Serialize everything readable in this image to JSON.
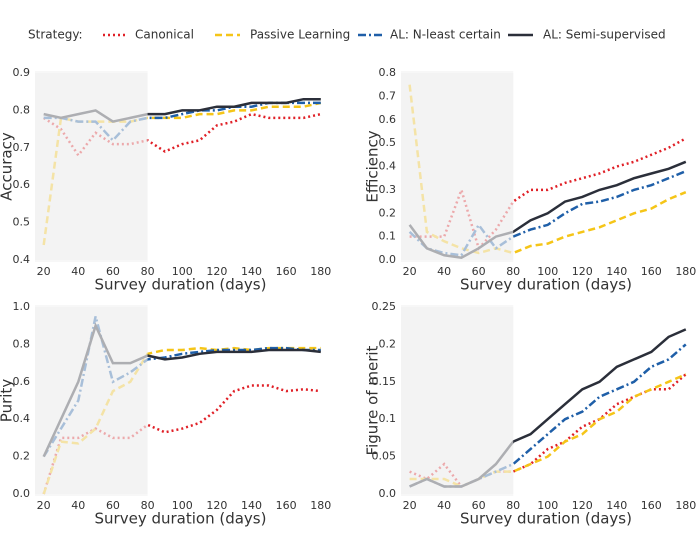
{
  "legend": {
    "title": "Strategy:",
    "series": [
      {
        "name": "Canonical",
        "color": "#e02027",
        "linestyle": "dotted"
      },
      {
        "name": "Passive Learning",
        "color": "#f5c518",
        "linestyle": "dashed"
      },
      {
        "name": "AL: N-least certain",
        "color": "#1f5fa8",
        "linestyle": "dashdot"
      },
      {
        "name": "AL: Semi-supervised",
        "color": "#2b2f3a",
        "linestyle": "solid"
      }
    ]
  },
  "chart_data": [
    {
      "type": "line",
      "xlabel": "Survey duration (days)",
      "ylabel": "Accuracy",
      "x": [
        20,
        30,
        40,
        50,
        60,
        70,
        80,
        90,
        100,
        110,
        120,
        130,
        140,
        150,
        160,
        170,
        180
      ],
      "xlim": [
        15,
        183
      ],
      "xticks": [
        20,
        40,
        60,
        80,
        100,
        120,
        140,
        160,
        180
      ],
      "ylim": [
        0.4,
        0.9
      ],
      "yticks": [
        0.4,
        0.5,
        0.6,
        0.7,
        0.8,
        0.9
      ],
      "shaded_xlim": [
        15,
        80
      ],
      "series": [
        {
          "values": [
            0.78,
            0.75,
            0.68,
            0.74,
            0.71,
            0.71,
            0.72,
            0.69,
            0.71,
            0.72,
            0.76,
            0.77,
            0.79,
            0.78,
            0.78,
            0.78,
            0.79
          ]
        },
        {
          "values": [
            0.44,
            0.78,
            0.77,
            0.77,
            0.77,
            0.77,
            0.78,
            0.78,
            0.78,
            0.79,
            0.79,
            0.8,
            0.8,
            0.81,
            0.81,
            0.81,
            0.82
          ]
        },
        {
          "values": [
            0.78,
            0.78,
            0.77,
            0.77,
            0.72,
            0.77,
            0.78,
            0.78,
            0.79,
            0.8,
            0.8,
            0.81,
            0.81,
            0.82,
            0.82,
            0.82,
            0.82
          ]
        },
        {
          "values": [
            0.79,
            0.78,
            0.79,
            0.8,
            0.77,
            0.78,
            0.79,
            0.79,
            0.8,
            0.8,
            0.81,
            0.81,
            0.82,
            0.82,
            0.82,
            0.83,
            0.83
          ]
        }
      ]
    },
    {
      "type": "line",
      "xlabel": "Survey duration (days)",
      "ylabel": "Efficiency",
      "x": [
        20,
        30,
        40,
        50,
        60,
        70,
        80,
        90,
        100,
        110,
        120,
        130,
        140,
        150,
        160,
        170,
        180
      ],
      "xlim": [
        15,
        183
      ],
      "xticks": [
        20,
        40,
        60,
        80,
        100,
        120,
        140,
        160,
        180
      ],
      "ylim": [
        0,
        0.8
      ],
      "yticks": [
        {
          "value": 0,
          "label": "0.0"
        },
        0.1,
        0.2,
        0.3,
        0.4,
        0.5,
        0.6,
        0.7,
        0.8
      ],
      "shaded_xlim": [
        15,
        80
      ],
      "series": [
        {
          "values": [
            0.1,
            0.1,
            0.1,
            0.3,
            0.05,
            0.13,
            0.25,
            0.3,
            0.3,
            0.33,
            0.35,
            0.37,
            0.4,
            0.42,
            0.45,
            0.48,
            0.52
          ]
        },
        {
          "values": [
            0.75,
            0.12,
            0.08,
            0.05,
            0.03,
            0.05,
            0.03,
            0.06,
            0.07,
            0.1,
            0.12,
            0.14,
            0.17,
            0.2,
            0.22,
            0.26,
            0.29
          ]
        },
        {
          "values": [
            0.12,
            0.05,
            0.03,
            0.02,
            0.15,
            0.05,
            0.1,
            0.13,
            0.15,
            0.2,
            0.24,
            0.25,
            0.27,
            0.3,
            0.32,
            0.35,
            0.38
          ]
        },
        {
          "values": [
            0.15,
            0.05,
            0.02,
            0.01,
            0.05,
            0.1,
            0.12,
            0.17,
            0.2,
            0.25,
            0.27,
            0.3,
            0.32,
            0.35,
            0.37,
            0.39,
            0.42
          ]
        }
      ]
    },
    {
      "type": "line",
      "xlabel": "Survey duration (days)",
      "ylabel": "Purity",
      "x": [
        20,
        30,
        40,
        50,
        60,
        70,
        80,
        90,
        100,
        110,
        120,
        130,
        140,
        150,
        160,
        170,
        180
      ],
      "xlim": [
        15,
        183
      ],
      "xticks": [
        20,
        40,
        60,
        80,
        100,
        120,
        140,
        160,
        180
      ],
      "ylim": [
        0,
        1
      ],
      "yticks": [
        {
          "value": 0,
          "label": "0.0"
        },
        0.2,
        0.4,
        0.6,
        0.8,
        {
          "value": 1,
          "label": "1.0"
        }
      ],
      "shaded_xlim": [
        15,
        80
      ],
      "series": [
        {
          "values": [
            0,
            0.3,
            0.3,
            0.35,
            0.3,
            0.3,
            0.37,
            0.33,
            0.35,
            0.38,
            0.45,
            0.55,
            0.58,
            0.58,
            0.55,
            0.56,
            0.55
          ]
        },
        {
          "values": [
            0,
            0.28,
            0.27,
            0.35,
            0.55,
            0.6,
            0.75,
            0.77,
            0.77,
            0.78,
            0.77,
            0.78,
            0.77,
            0.78,
            0.78,
            0.78,
            0.78
          ]
        },
        {
          "values": [
            0.2,
            0.35,
            0.5,
            0.95,
            0.6,
            0.65,
            0.72,
            0.73,
            0.75,
            0.76,
            0.77,
            0.77,
            0.77,
            0.78,
            0.78,
            0.77,
            0.77
          ]
        },
        {
          "values": [
            0.2,
            0.4,
            0.6,
            0.9,
            0.7,
            0.7,
            0.74,
            0.72,
            0.73,
            0.75,
            0.76,
            0.76,
            0.76,
            0.77,
            0.77,
            0.77,
            0.76
          ]
        }
      ]
    },
    {
      "type": "line",
      "xlabel": "Survey duration (days)",
      "ylabel": "Figure of merit",
      "x": [
        20,
        30,
        40,
        50,
        60,
        70,
        80,
        90,
        100,
        110,
        120,
        130,
        140,
        150,
        160,
        170,
        180
      ],
      "xlim": [
        15,
        183
      ],
      "xticks": [
        20,
        40,
        60,
        80,
        100,
        120,
        140,
        160,
        180
      ],
      "ylim": [
        0,
        0.25
      ],
      "yticks": [
        {
          "value": 0,
          "label": "0.0"
        },
        0.05,
        0.1,
        0.15,
        0.2,
        0.25
      ],
      "shaded_xlim": [
        15,
        80
      ],
      "series": [
        {
          "values": [
            0.03,
            0.02,
            0.04,
            0.01,
            0.02,
            0.03,
            0.03,
            0.04,
            0.06,
            0.07,
            0.09,
            0.1,
            0.12,
            0.13,
            0.14,
            0.14,
            0.16
          ]
        },
        {
          "values": [
            0.02,
            0.02,
            0.02,
            0.01,
            0.02,
            0.03,
            0.03,
            0.04,
            0.05,
            0.07,
            0.08,
            0.1,
            0.11,
            0.13,
            0.14,
            0.15,
            0.16
          ]
        },
        {
          "values": [
            0.01,
            0.02,
            0.01,
            0.01,
            0.02,
            0.03,
            0.04,
            0.06,
            0.08,
            0.1,
            0.11,
            0.13,
            0.14,
            0.15,
            0.17,
            0.18,
            0.2
          ]
        },
        {
          "values": [
            0.01,
            0.02,
            0.01,
            0.01,
            0.02,
            0.04,
            0.07,
            0.08,
            0.1,
            0.12,
            0.14,
            0.15,
            0.17,
            0.18,
            0.19,
            0.21,
            0.22
          ]
        }
      ]
    }
  ]
}
